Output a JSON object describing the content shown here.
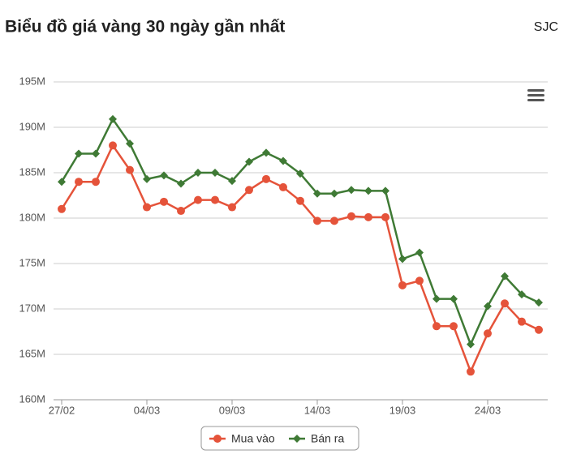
{
  "chart_data": {
    "type": "line",
    "title": "Biểu đồ giá vàng 30 ngày gần nhất",
    "subtitle": "SJC",
    "categories": [
      "27/02",
      null,
      null,
      null,
      null,
      "04/03",
      null,
      null,
      null,
      null,
      "09/03",
      null,
      null,
      null,
      null,
      "14/03",
      null,
      null,
      null,
      null,
      "19/03",
      null,
      null,
      null,
      null,
      "24/03",
      null,
      null,
      null
    ],
    "series": [
      {
        "name": "Mua vào",
        "color": "#e5533a",
        "marker": "circle",
        "values": [
          181.0,
          184.0,
          184.0,
          188.0,
          185.3,
          181.2,
          181.8,
          180.8,
          182.0,
          182.0,
          181.2,
          183.1,
          184.3,
          183.4,
          181.9,
          179.7,
          179.7,
          180.2,
          180.1,
          180.1,
          172.6,
          173.1,
          168.1,
          168.1,
          163.1,
          167.3,
          170.6,
          168.6,
          167.7
        ]
      },
      {
        "name": "Bán ra",
        "color": "#3f7a35",
        "marker": "diamond",
        "values": [
          184.0,
          187.1,
          187.1,
          190.9,
          188.2,
          184.3,
          184.7,
          183.8,
          185.0,
          185.0,
          184.1,
          186.2,
          187.2,
          186.3,
          184.9,
          182.7,
          182.7,
          183.1,
          183.0,
          183.0,
          175.5,
          176.2,
          171.1,
          171.1,
          166.1,
          170.3,
          173.6,
          171.6,
          170.7
        ]
      }
    ],
    "ylim": [
      160,
      195
    ],
    "yticks": [
      {
        "value": 160,
        "label": "160M"
      },
      {
        "value": 165,
        "label": "165M"
      },
      {
        "value": 170,
        "label": "170M"
      },
      {
        "value": 175,
        "label": "175M"
      },
      {
        "value": 180,
        "label": "180M"
      },
      {
        "value": 185,
        "label": "185M"
      },
      {
        "value": 190,
        "label": "190M"
      },
      {
        "value": 195,
        "label": "195M"
      }
    ],
    "grid": true,
    "legend": "bottom"
  }
}
